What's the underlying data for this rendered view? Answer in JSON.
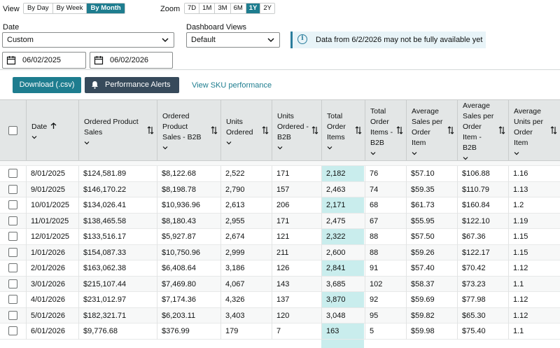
{
  "view": {
    "label": "View",
    "options": [
      "By Day",
      "By Week",
      "By Month"
    ],
    "active": "By Month"
  },
  "zoom": {
    "label": "Zoom",
    "options": [
      "7D",
      "1M",
      "3M",
      "6M",
      "1Y",
      "2Y"
    ],
    "active": "1Y"
  },
  "date": {
    "label": "Date",
    "selected": "Custom",
    "start": "06/02/2025",
    "end": "06/02/2026"
  },
  "dashboard_views": {
    "label": "Dashboard Views",
    "selected": "Default"
  },
  "notice": {
    "text": "Data from 6/2/2026 may not be fully available yet"
  },
  "actions": {
    "download": "Download (.csv)",
    "alerts": "Performance Alerts",
    "sku_link": "View SKU performance"
  },
  "colors": {
    "accent": "#1e7d8f",
    "alerts_button": "#374a5b",
    "highlight_column": "#c9eded",
    "header_bg": "#e3e6e6"
  },
  "table": {
    "columns": [
      {
        "lines": [
          "Date"
        ],
        "sorted_icon": "arrow-up-icon"
      },
      {
        "lines": [
          "Ordered Product",
          "Sales"
        ]
      },
      {
        "lines": [
          "Ordered",
          "Product",
          "Sales - B2B"
        ]
      },
      {
        "lines": [
          "Units",
          "Ordered"
        ]
      },
      {
        "lines": [
          "Units",
          "Ordered -",
          "B2B"
        ]
      },
      {
        "lines": [
          "Total",
          "Order",
          "Items"
        ]
      },
      {
        "lines": [
          "Total",
          "Order",
          "Items -",
          "B2B"
        ]
      },
      {
        "lines": [
          "Average",
          "Sales per",
          "Order",
          "Item"
        ]
      },
      {
        "lines": [
          "Average",
          "Sales per",
          "Order",
          "Item -",
          "B2B"
        ]
      },
      {
        "lines": [
          "Average",
          "Units per",
          "Order",
          "Item"
        ]
      }
    ],
    "rows": [
      [
        "8/01/2025",
        "$124,581.89",
        "$8,122.68",
        "2,522",
        "171",
        "2,182",
        "76",
        "$57.10",
        "$106.88",
        "1.16"
      ],
      [
        "9/01/2025",
        "$146,170.22",
        "$8,198.78",
        "2,790",
        "157",
        "2,463",
        "74",
        "$59.35",
        "$110.79",
        "1.13"
      ],
      [
        "10/01/2025",
        "$134,026.41",
        "$10,936.96",
        "2,613",
        "206",
        "2,171",
        "68",
        "$61.73",
        "$160.84",
        "1.2"
      ],
      [
        "11/01/2025",
        "$138,465.58",
        "$8,180.43",
        "2,955",
        "171",
        "2,475",
        "67",
        "$55.95",
        "$122.10",
        "1.19"
      ],
      [
        "12/01/2025",
        "$133,516.17",
        "$5,927.87",
        "2,674",
        "121",
        "2,322",
        "88",
        "$57.50",
        "$67.36",
        "1.15"
      ],
      [
        "1/01/2026",
        "$154,087.33",
        "$10,750.96",
        "2,999",
        "211",
        "2,600",
        "88",
        "$59.26",
        "$122.17",
        "1.15"
      ],
      [
        "2/01/2026",
        "$163,062.38",
        "$6,408.64",
        "3,186",
        "126",
        "2,841",
        "91",
        "$57.40",
        "$70.42",
        "1.12"
      ],
      [
        "3/01/2026",
        "$215,107.44",
        "$7,469.80",
        "4,067",
        "143",
        "3,685",
        "102",
        "$58.37",
        "$73.23",
        "1.1"
      ],
      [
        "4/01/2026",
        "$231,012.97",
        "$7,174.36",
        "4,326",
        "137",
        "3,870",
        "92",
        "$59.69",
        "$77.98",
        "1.12"
      ],
      [
        "5/01/2026",
        "$182,321.71",
        "$6,203.11",
        "3,403",
        "120",
        "3,048",
        "95",
        "$59.82",
        "$65.30",
        "1.12"
      ],
      [
        "6/01/2026",
        "$9,776.68",
        "$376.99",
        "179",
        "7",
        "163",
        "5",
        "$59.98",
        "$75.40",
        "1.1"
      ]
    ]
  }
}
